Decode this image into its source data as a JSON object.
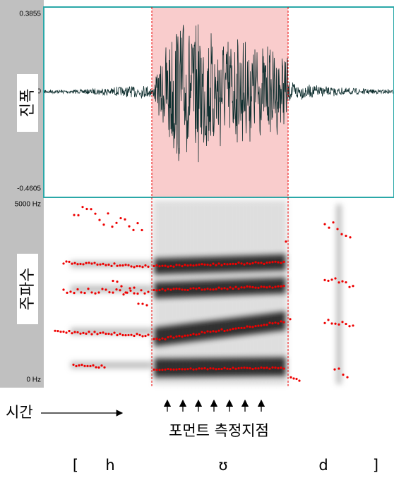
{
  "waveform_panel": {
    "label": "진폭",
    "y_max": "0.3855",
    "y_zero": "0",
    "y_min": "-0.4605"
  },
  "spectrogram_panel": {
    "label": "주파수",
    "y_max": "5000 Hz",
    "y_min": "0 Hz"
  },
  "time_label": "시간",
  "formant_label": "포먼트 측정지점",
  "transcription": [
    "[",
    "h",
    "ʊ",
    "d",
    "]"
  ]
}
